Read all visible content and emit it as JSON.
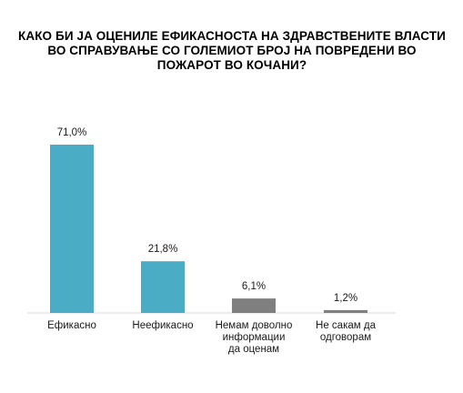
{
  "chart_data": {
    "type": "bar",
    "title": "КАКО БИ ЈА ОЦЕНИЛЕ ЕФИКАСНОСТА НА ЗДРАВСТВЕНИТЕ ВЛАСТИ ВО СПРАВУВАЊЕ СО ГОЛЕМИОТ БРОЈ НА ПОВРЕДЕНИ ВО ПОЖАРОТ ВО КОЧАНИ?",
    "categories": [
      [
        "Ефикасно"
      ],
      [
        "Неефикасно"
      ],
      [
        "Немам доволно",
        "информации",
        "да оценам"
      ],
      [
        "Не сакам да",
        "одговорам"
      ]
    ],
    "values": [
      71.0,
      21.8,
      6.1,
      1.2
    ],
    "value_labels": [
      "71,0%",
      "21,8%",
      "6,1%",
      "1,2%"
    ],
    "colors": [
      "#4bacc6",
      "#4bacc6",
      "#7f7f7f",
      "#7f7f7f"
    ],
    "ylim": [
      0,
      71
    ],
    "grid": false,
    "legend": "none"
  }
}
